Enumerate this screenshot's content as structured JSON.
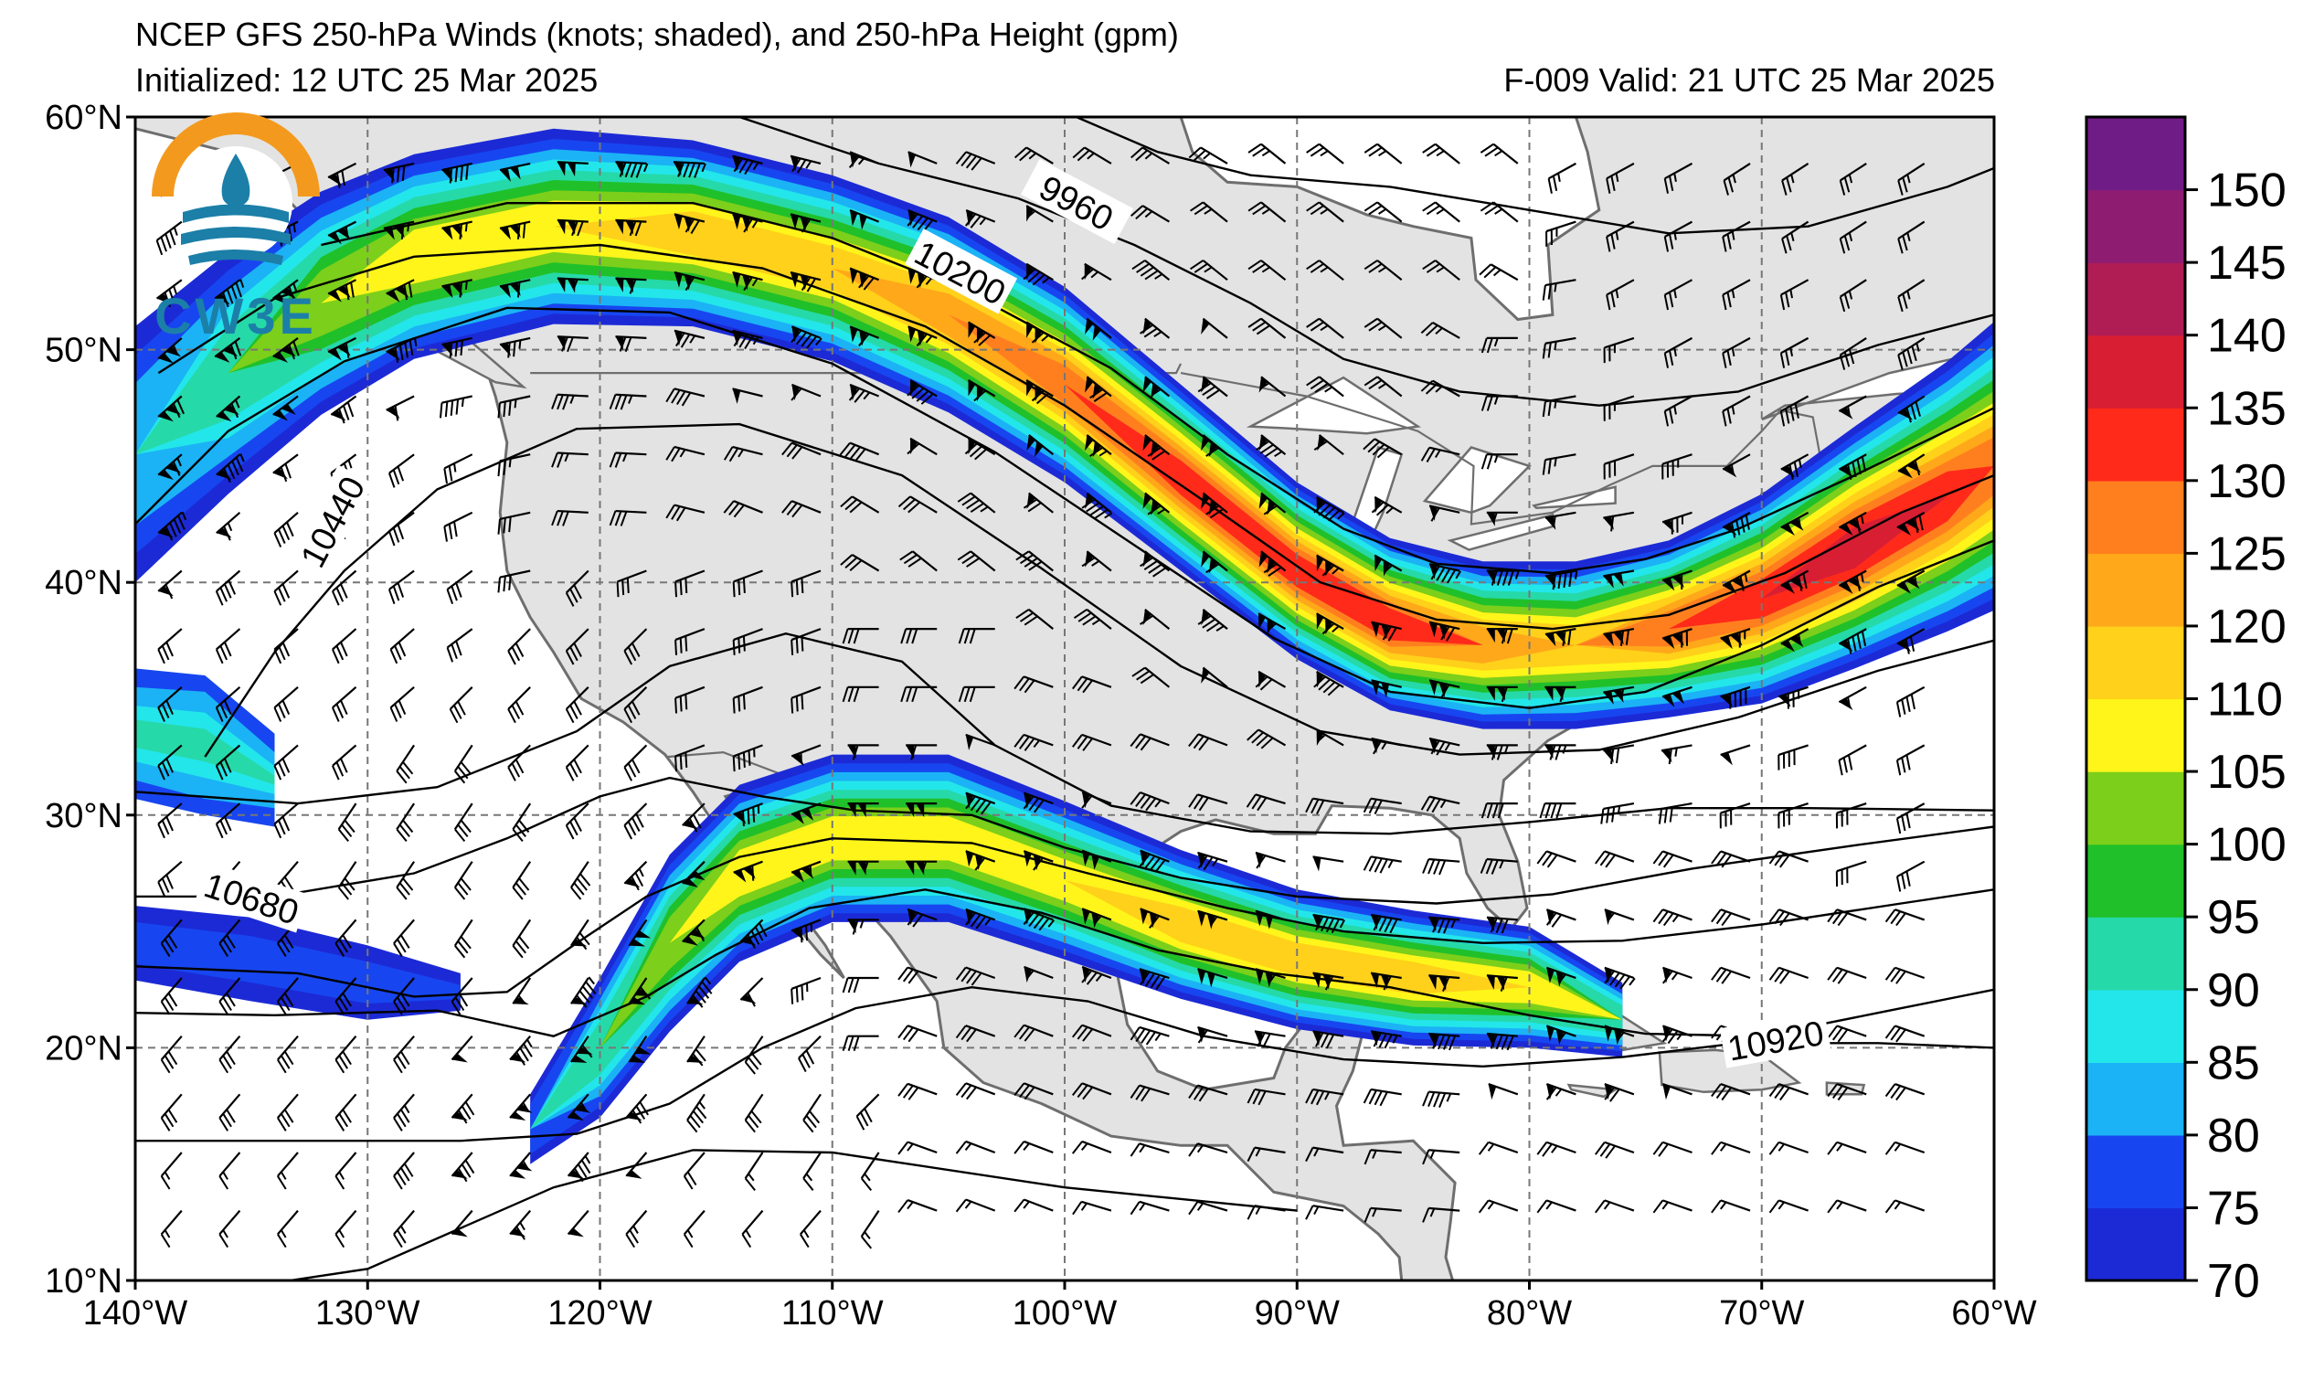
{
  "header": {
    "title": "NCEP GFS 250-hPa Winds (knots; shaded), and 250-hPa Height (gpm)",
    "initialized": "Initialized: 12 UTC 25 Mar 2025",
    "valid": "F-009  Valid: 21 UTC 25 Mar 2025"
  },
  "logo": {
    "text": "CW3E",
    "colors": {
      "ring": "#f39a1e",
      "water": "#1b7fa8"
    }
  },
  "map": {
    "lon_range": [
      -140,
      -60
    ],
    "lat_range": [
      10,
      60
    ],
    "lon_ticks": [
      {
        "value": -140,
        "label": "140°W"
      },
      {
        "value": -130,
        "label": "130°W"
      },
      {
        "value": -120,
        "label": "120°W"
      },
      {
        "value": -110,
        "label": "110°W"
      },
      {
        "value": -100,
        "label": "100°W"
      },
      {
        "value": -90,
        "label": "90°W"
      },
      {
        "value": -80,
        "label": "80°W"
      },
      {
        "value": -70,
        "label": "70°W"
      },
      {
        "value": -60,
        "label": "60°W"
      }
    ],
    "lat_ticks": [
      {
        "value": 60,
        "label": "60°N"
      },
      {
        "value": 50,
        "label": "50°N"
      },
      {
        "value": 40,
        "label": "40°N"
      },
      {
        "value": 30,
        "label": "30°N"
      },
      {
        "value": 20,
        "label": "20°N"
      },
      {
        "value": 10,
        "label": "10°N"
      }
    ],
    "contour_labels": [
      {
        "text": "9960",
        "lon": -99.5,
        "lat": 56.3,
        "angle": 28
      },
      {
        "text": "10200",
        "lon": -104.5,
        "lat": 53.3,
        "angle": 28
      },
      {
        "text": "10440",
        "lon": -131.5,
        "lat": 42.6,
        "angle": -62
      },
      {
        "text": "10680",
        "lon": -135,
        "lat": 26.4,
        "angle": 18
      },
      {
        "text": "10920",
        "lon": -69.4,
        "lat": 20.3,
        "angle": -10
      }
    ],
    "colors": {
      "land": "#e3e3e3",
      "ocean": "#ffffff",
      "coast": "#6e6e6e"
    }
  },
  "colorbar": {
    "levels": [
      70,
      75,
      80,
      85,
      90,
      95,
      100,
      105,
      110,
      120,
      125,
      130,
      135,
      140,
      145,
      150
    ],
    "colors": [
      "#1c2ad6",
      "#1746f0",
      "#1bb3f5",
      "#23e6ea",
      "#26d9a8",
      "#20c02a",
      "#7ccf1a",
      "#fff51a",
      "#ffd11a",
      "#ffa81a",
      "#ff7f1f",
      "#ff2a1a",
      "#d81e33",
      "#b01d55",
      "#8e1d72",
      "#701c86"
    ],
    "labels": [
      "70",
      "75",
      "80",
      "85",
      "90",
      "95",
      "100",
      "105",
      "110",
      "120",
      "125",
      "130",
      "135",
      "140",
      "145",
      "150"
    ]
  }
}
